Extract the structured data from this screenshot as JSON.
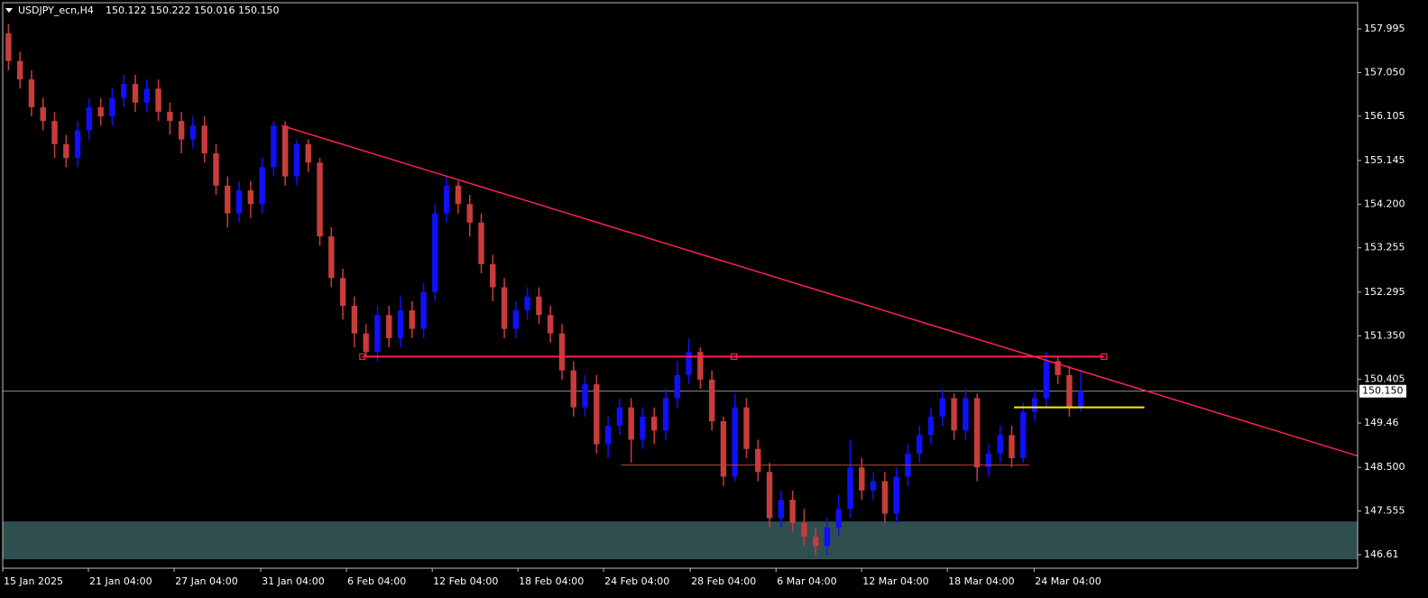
{
  "chart_data": {
    "type": "candlestick",
    "title": "USDJPY_ecn,H4",
    "quote": "150.122 150.222 150.016 150.150",
    "bull_color": "#1010ff",
    "bear_color": "#c83c3c",
    "grid": false,
    "ylim": [
      146.317,
      158.62
    ],
    "xlim": [
      0,
      117.5
    ],
    "yticks": [
      157.995,
      {
        "value": 157.05,
        "label": "157.050"
      },
      156.105,
      155.145,
      {
        "value": 154.2,
        "label": "154.200"
      },
      153.255,
      152.295,
      {
        "value": 151.35,
        "label": "151.350"
      },
      150.405,
      149.46,
      {
        "value": 148.5,
        "label": "148.500"
      },
      147.555,
      146.61
    ],
    "xticks": [
      {
        "value": 0,
        "label": "15 Jan 2025"
      },
      {
        "value": 7.43,
        "label": "21 Jan 04:00"
      },
      {
        "value": 14.87,
        "label": "27 Jan 04:00"
      },
      {
        "value": 22.38,
        "label": "31 Jan 04:00"
      },
      {
        "value": 29.81,
        "label": "6 Feb 04:00"
      },
      {
        "value": 37.25,
        "label": "12 Feb 04:00"
      },
      {
        "value": 44.68,
        "label": "18 Feb 04:00"
      },
      {
        "value": 52.11,
        "label": "24 Feb 04:00"
      },
      {
        "value": 59.62,
        "label": "28 Feb 04:00"
      },
      {
        "value": 67.06,
        "label": "6 Mar 04:00"
      },
      {
        "value": 74.49,
        "label": "12 Mar 04:00"
      },
      {
        "value": 81.92,
        "label": "18 Mar 04:00"
      },
      {
        "value": 89.44,
        "label": "24 Mar 04:00"
      }
    ],
    "candles": [
      [
        157.9,
        158.1,
        157.1,
        157.3
      ],
      [
        157.3,
        157.5,
        156.7,
        156.9
      ],
      [
        156.9,
        157.1,
        156.1,
        156.3
      ],
      [
        156.3,
        156.5,
        155.8,
        156.0
      ],
      [
        156.0,
        156.2,
        155.2,
        155.5
      ],
      [
        155.5,
        155.7,
        155.0,
        155.2
      ],
      [
        155.2,
        156.0,
        155.0,
        155.8
      ],
      [
        155.8,
        156.5,
        155.6,
        156.3
      ],
      [
        156.3,
        156.5,
        155.9,
        156.1
      ],
      [
        156.1,
        156.7,
        155.9,
        156.5
      ],
      [
        156.5,
        157.0,
        156.3,
        156.8
      ],
      [
        156.8,
        157.0,
        156.2,
        156.4
      ],
      [
        156.4,
        156.9,
        156.2,
        156.7
      ],
      [
        156.7,
        156.9,
        156.0,
        156.2
      ],
      [
        156.2,
        156.4,
        155.7,
        156.0
      ],
      [
        156.0,
        156.2,
        155.3,
        155.6
      ],
      [
        155.6,
        156.1,
        155.4,
        155.9
      ],
      [
        155.9,
        156.1,
        155.1,
        155.3
      ],
      [
        155.3,
        155.5,
        154.4,
        154.6
      ],
      [
        154.6,
        154.8,
        153.7,
        154.0
      ],
      [
        154.0,
        154.7,
        153.8,
        154.5
      ],
      [
        154.5,
        154.7,
        153.9,
        154.2
      ],
      [
        154.2,
        155.2,
        154.0,
        155.0
      ],
      [
        155.0,
        156.0,
        154.8,
        155.9
      ],
      [
        155.9,
        156.0,
        154.6,
        154.8
      ],
      [
        154.8,
        155.6,
        154.6,
        155.5
      ],
      [
        155.5,
        155.6,
        154.9,
        155.1
      ],
      [
        155.1,
        155.2,
        153.3,
        153.5
      ],
      [
        153.5,
        153.7,
        152.4,
        152.6
      ],
      [
        152.6,
        152.8,
        151.7,
        152.0
      ],
      [
        152.0,
        152.2,
        151.1,
        151.4
      ],
      [
        151.4,
        151.6,
        150.9,
        151.0
      ],
      [
        151.0,
        152.0,
        150.8,
        151.8
      ],
      [
        151.8,
        152.0,
        151.1,
        151.3
      ],
      [
        151.3,
        152.2,
        151.1,
        151.9
      ],
      [
        151.9,
        152.1,
        151.3,
        151.5
      ],
      [
        151.5,
        152.5,
        151.3,
        152.3
      ],
      [
        152.3,
        154.2,
        152.1,
        154.0
      ],
      [
        154.0,
        154.8,
        153.8,
        154.6
      ],
      [
        154.6,
        154.7,
        154.0,
        154.2
      ],
      [
        154.2,
        154.4,
        153.5,
        153.8
      ],
      [
        153.8,
        154.0,
        152.7,
        152.9
      ],
      [
        152.9,
        153.1,
        152.1,
        152.4
      ],
      [
        152.4,
        152.6,
        151.3,
        151.5
      ],
      [
        151.5,
        152.1,
        151.3,
        151.9
      ],
      [
        151.9,
        152.4,
        151.7,
        152.2
      ],
      [
        152.2,
        152.4,
        151.6,
        151.8
      ],
      [
        151.8,
        152.0,
        151.2,
        151.4
      ],
      [
        151.4,
        151.6,
        150.4,
        150.6
      ],
      [
        150.6,
        150.8,
        149.6,
        149.8
      ],
      [
        149.8,
        150.5,
        149.6,
        150.3
      ],
      [
        150.3,
        150.5,
        148.8,
        149.0
      ],
      [
        149.0,
        149.6,
        148.7,
        149.4
      ],
      [
        149.4,
        150.0,
        149.2,
        149.8
      ],
      [
        149.8,
        150.0,
        148.6,
        149.1
      ],
      [
        149.1,
        149.8,
        148.9,
        149.6
      ],
      [
        149.6,
        149.8,
        149.0,
        149.3
      ],
      [
        149.3,
        150.2,
        149.1,
        150.0
      ],
      [
        150.0,
        150.8,
        149.8,
        150.5
      ],
      [
        150.5,
        151.3,
        150.3,
        151.0
      ],
      [
        151.0,
        151.1,
        150.2,
        150.4
      ],
      [
        150.4,
        150.6,
        149.3,
        149.5
      ],
      [
        149.5,
        149.6,
        148.1,
        148.3
      ],
      [
        148.3,
        150.1,
        148.2,
        149.8
      ],
      [
        149.8,
        150.0,
        148.7,
        148.9
      ],
      [
        148.9,
        149.1,
        148.2,
        148.4
      ],
      [
        148.4,
        148.6,
        147.2,
        147.4
      ],
      [
        147.4,
        148.0,
        147.2,
        147.8
      ],
      [
        147.8,
        148.0,
        147.1,
        147.3
      ],
      [
        147.3,
        147.6,
        146.8,
        147.0
      ],
      [
        147.0,
        147.2,
        146.6,
        146.8
      ],
      [
        146.8,
        147.4,
        146.6,
        147.2
      ],
      [
        147.2,
        147.9,
        147.0,
        147.6
      ],
      [
        147.6,
        149.1,
        147.4,
        148.5
      ],
      [
        148.5,
        148.7,
        147.8,
        148.0
      ],
      [
        148.0,
        148.4,
        147.8,
        148.2
      ],
      [
        148.2,
        148.4,
        147.3,
        147.5
      ],
      [
        147.5,
        148.5,
        147.3,
        148.3
      ],
      [
        148.3,
        149.0,
        148.1,
        148.8
      ],
      [
        148.8,
        149.4,
        148.6,
        149.2
      ],
      [
        149.2,
        149.8,
        149.0,
        149.6
      ],
      [
        149.6,
        150.2,
        149.4,
        150.0
      ],
      [
        150.0,
        150.1,
        149.1,
        149.3
      ],
      [
        149.3,
        150.2,
        149.1,
        150.0
      ],
      [
        150.0,
        150.1,
        148.2,
        148.5
      ],
      [
        148.5,
        149.0,
        148.3,
        148.8
      ],
      [
        148.8,
        149.4,
        148.6,
        149.2
      ],
      [
        149.2,
        149.4,
        148.5,
        148.7
      ],
      [
        148.7,
        149.9,
        148.6,
        149.7
      ],
      [
        149.7,
        150.2,
        149.5,
        150.0
      ],
      [
        150.0,
        151.0,
        149.8,
        150.8
      ],
      [
        150.8,
        150.9,
        150.3,
        150.5
      ],
      [
        150.5,
        150.7,
        149.6,
        149.8
      ],
      [
        149.8,
        150.6,
        149.7,
        150.15
      ]
    ],
    "current_price": {
      "value": 150.15,
      "label": "150.150",
      "color": "#c0c0c0"
    },
    "zone": {
      "y": [
        146.51,
        147.33
      ],
      "color": "#2f4f4f"
    },
    "lines": [
      {
        "x": [
          24.2,
          117.5
        ],
        "y": [
          155.9,
          148.75
        ],
        "color": "#ff2050",
        "width": 1.5
      },
      {
        "x": [
          31.2,
          95.5
        ],
        "y": [
          150.9,
          150.9
        ],
        "color": "#ff2050",
        "width": 2,
        "markers": [
          31.2,
          63.4,
          95.5
        ]
      },
      {
        "x": [
          53.6,
          89.0
        ],
        "y": [
          148.55,
          148.55
        ],
        "color": "#c83c3c",
        "width": 1
      },
      {
        "x": [
          87.7,
          99.0
        ],
        "y": [
          149.8,
          149.8
        ],
        "color": "#ffee00",
        "width": 2
      }
    ]
  }
}
